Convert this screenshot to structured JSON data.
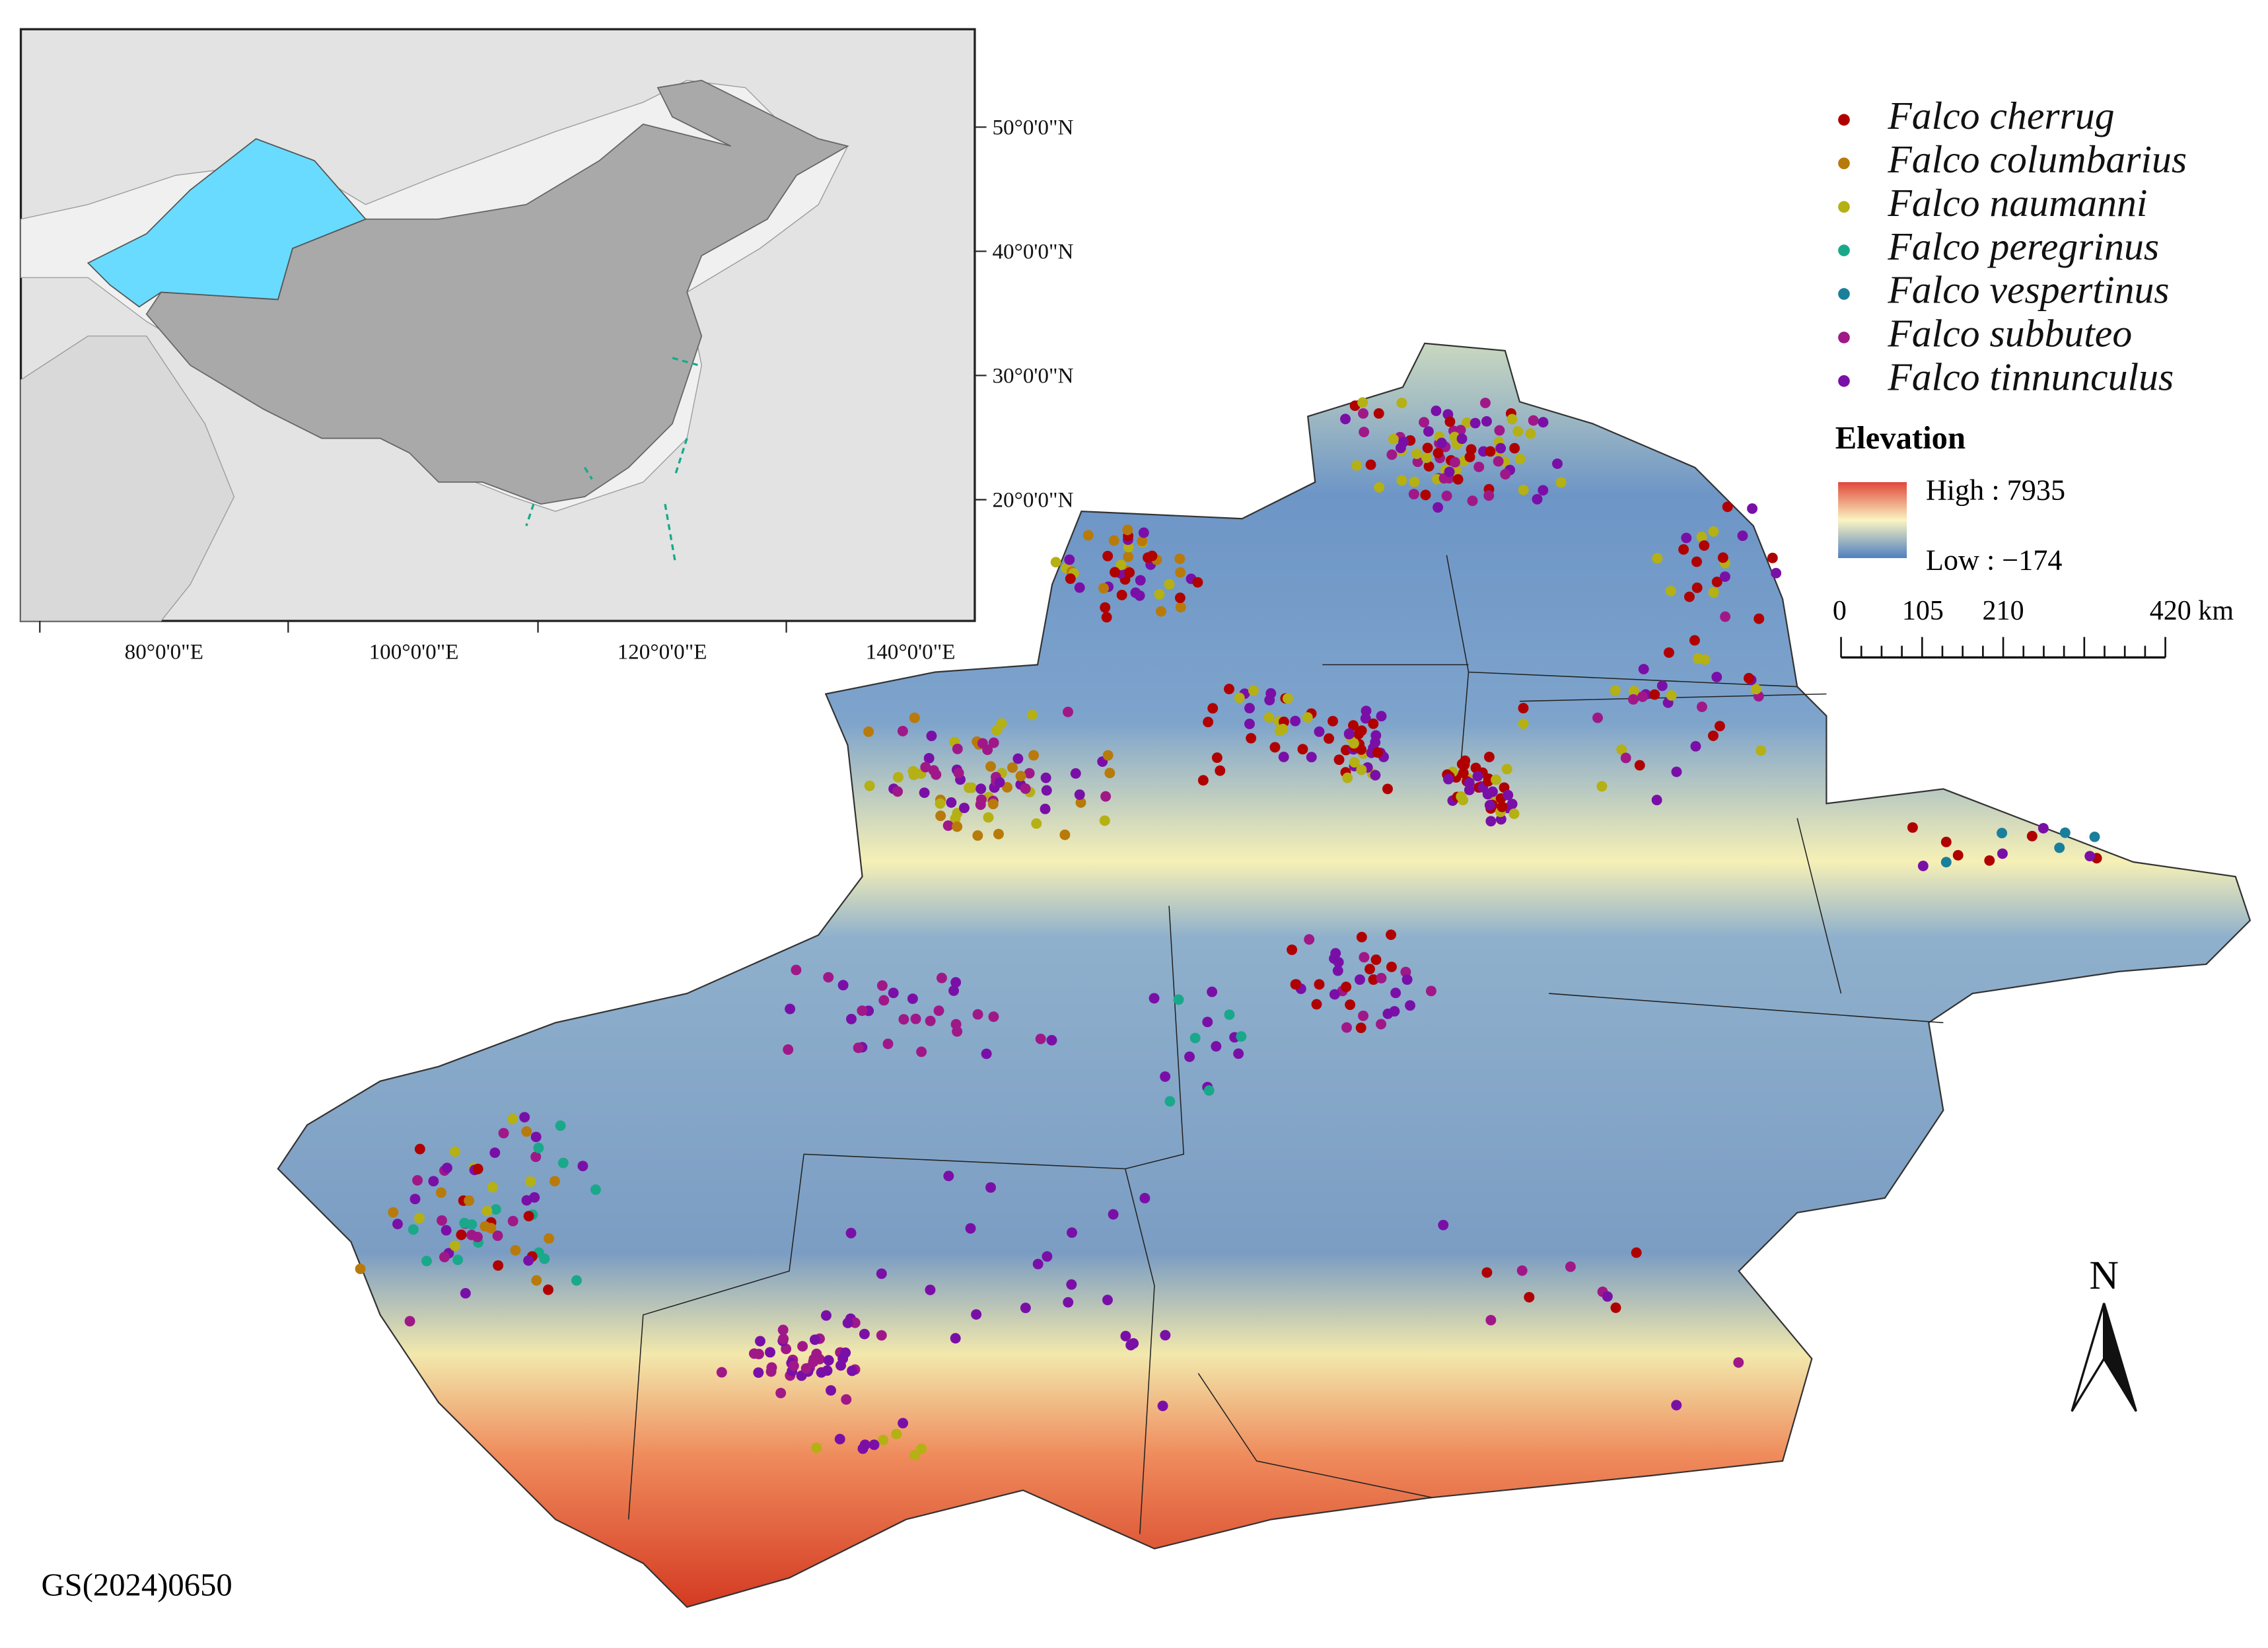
{
  "inset": {
    "lat_labels": [
      "50°0'0\"N",
      "40°0'0\"N",
      "30°0'0\"N",
      "20°0'0\"N"
    ],
    "lon_labels": [
      "80°0'0\"E",
      "100°0'0\"E",
      "120°0'0\"E",
      "140°0'0\"E"
    ]
  },
  "legend": {
    "species": [
      {
        "name": "Falco cherrug",
        "color": "#b00000"
      },
      {
        "name": "Falco columbarius",
        "color": "#b87a0a"
      },
      {
        "name": "Falco naumanni",
        "color": "#b5b014"
      },
      {
        "name": "Falco peregrinus",
        "color": "#1aa88a"
      },
      {
        "name": "Falco vespertinus",
        "color": "#1a7f9a"
      },
      {
        "name": "Falco subbuteo",
        "color": "#a01888"
      },
      {
        "name": "Falco tinnunculus",
        "color": "#7a0fa8"
      }
    ]
  },
  "elevation": {
    "title": "Elevation",
    "high": "High : 7935",
    "low": "Low : −174"
  },
  "scale_bar": {
    "labels": [
      "0",
      "105",
      "210",
      "420 km"
    ]
  },
  "north": "N",
  "code": "GS(2024)0650"
}
